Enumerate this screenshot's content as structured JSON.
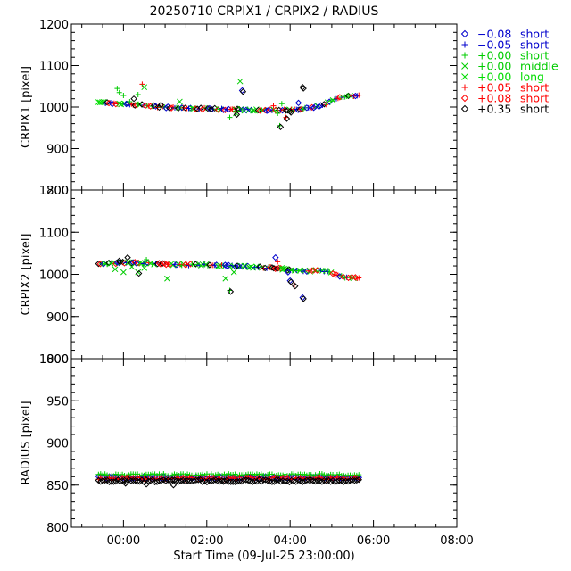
{
  "chart_data": {
    "type": "scatter",
    "title": "20250710 CRPIX1 / CRPIX2 / RADIUS",
    "xlabel": "Start Time (09-Jul-25 23:00:00)",
    "x_tick_labels": [
      "00:00",
      "02:00",
      "04:00",
      "06:00",
      "08:00"
    ],
    "x_ticks_hours": [
      1,
      3,
      5,
      7,
      9
    ],
    "x_range_hours": [
      -0.25,
      9.0
    ],
    "panels": [
      {
        "ylabel": "CRPIX1 [pixel]",
        "ylim": [
          800,
          1200
        ],
        "yticks": [
          800,
          900,
          1000,
          1100,
          1200
        ],
        "trend": [
          [
            0.4,
            1011
          ],
          [
            1.0,
            1008
          ],
          [
            1.5,
            1004
          ],
          [
            2.0,
            999
          ],
          [
            3.0,
            996
          ],
          [
            4.0,
            993
          ],
          [
            4.6,
            992
          ],
          [
            5.0,
            993
          ],
          [
            5.4,
            997
          ],
          [
            5.8,
            1004
          ],
          [
            6.0,
            1015
          ],
          [
            6.2,
            1025
          ],
          [
            6.65,
            1027
          ]
        ],
        "outliers": [
          [
            0.85,
            1045
          ],
          [
            0.9,
            1035
          ],
          [
            1.0,
            1028
          ],
          [
            1.15,
            1013
          ],
          [
            1.25,
            1020
          ],
          [
            1.35,
            1030
          ],
          [
            1.45,
            1055
          ],
          [
            1.5,
            1048
          ],
          [
            1.9,
            1005
          ],
          [
            2.35,
            1013
          ],
          [
            3.55,
            975
          ],
          [
            3.7,
            985
          ],
          [
            3.8,
            1062
          ],
          [
            3.85,
            1040
          ],
          [
            4.6,
            1003
          ],
          [
            4.7,
            985
          ],
          [
            4.75,
            955
          ],
          [
            4.8,
            1008
          ],
          [
            4.9,
            975
          ],
          [
            5.0,
            990
          ],
          [
            5.2,
            1010
          ],
          [
            5.3,
            1048
          ]
        ]
      },
      {
        "ylabel": "CRPIX2 [pixel]",
        "ylim": [
          800,
          1200
        ],
        "yticks": [
          800,
          900,
          1000,
          1100,
          1200
        ],
        "trend": [
          [
            0.4,
            1024
          ],
          [
            1.0,
            1028
          ],
          [
            1.6,
            1026
          ],
          [
            2.0,
            1024
          ],
          [
            3.0,
            1022
          ],
          [
            4.0,
            1018
          ],
          [
            4.6,
            1015
          ],
          [
            5.0,
            1010
          ],
          [
            5.5,
            1008
          ],
          [
            5.9,
            1008
          ],
          [
            6.1,
            1000
          ],
          [
            6.3,
            993
          ],
          [
            6.65,
            992
          ]
        ],
        "outliers": [
          [
            0.8,
            1012
          ],
          [
            0.9,
            1032
          ],
          [
            1.0,
            1005
          ],
          [
            1.1,
            1040
          ],
          [
            1.2,
            1018
          ],
          [
            1.35,
            1005
          ],
          [
            1.5,
            1015
          ],
          [
            1.55,
            1035
          ],
          [
            2.05,
            990
          ],
          [
            3.45,
            990
          ],
          [
            3.55,
            962
          ],
          [
            3.65,
            1005
          ],
          [
            4.65,
            1040
          ],
          [
            4.7,
            1030
          ],
          [
            4.8,
            1015
          ],
          [
            4.95,
            1005
          ],
          [
            5.0,
            985
          ],
          [
            5.1,
            975
          ],
          [
            5.3,
            945
          ]
        ]
      },
      {
        "ylabel": "RADIUS [pixel]",
        "ylim": [
          800,
          1000
        ],
        "yticks": [
          800,
          850,
          900,
          950,
          1000
        ],
        "series_levels": [
          {
            "name": "-0.08 short",
            "level": 859
          },
          {
            "name": "+0.00 short",
            "level": 862
          },
          {
            "name": "+0.05 short",
            "level": 858
          },
          {
            "name": "+0.35 short",
            "level": 855
          }
        ],
        "outliers": [
          [
            1.05,
            852
          ],
          [
            1.55,
            851
          ],
          [
            2.2,
            850
          ],
          [
            3.4,
            854
          ]
        ]
      }
    ],
    "series": [
      {
        "offset": "−0.08",
        "mode": "short",
        "symbol": "diamond",
        "color": "#0000cc"
      },
      {
        "offset": "−0.05",
        "mode": "short",
        "symbol": "plus",
        "color": "#0000cc"
      },
      {
        "offset": "+0.00",
        "mode": "short",
        "symbol": "plus",
        "color": "#00cc00"
      },
      {
        "offset": "+0.00",
        "mode": "middle",
        "symbol": "cross",
        "color": "#00cc00"
      },
      {
        "offset": "+0.00",
        "mode": "long",
        "symbol": "cross",
        "color": "#00dd00"
      },
      {
        "offset": "+0.05",
        "mode": "short",
        "symbol": "plus",
        "color": "#ff0000"
      },
      {
        "offset": "+0.08",
        "mode": "short",
        "symbol": "diamond",
        "color": "#ff0000"
      },
      {
        "offset": "+0.35",
        "mode": "short",
        "symbol": "diamond",
        "color": "#000000"
      }
    ]
  }
}
